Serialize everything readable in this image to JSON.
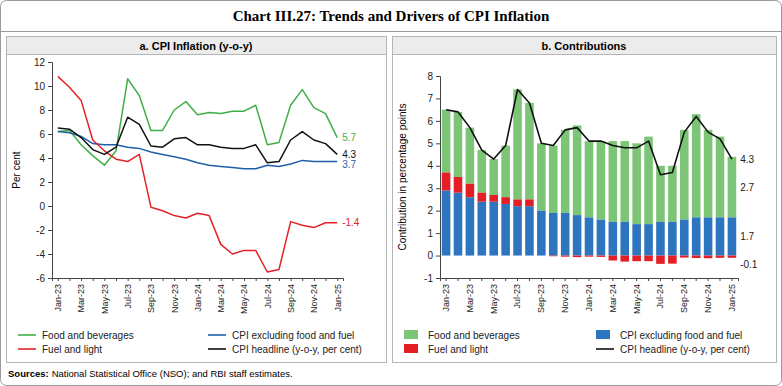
{
  "title": "Chart III.27: Trends and Drivers of CPI Inflation",
  "source_label": "Sources:",
  "source": "National Statistical Office (NSO); and RBI staff estimates.",
  "chart_data": [
    {
      "type": "line",
      "title": "a. CPI Inflation (y-o-y)",
      "y_label": "Per cent",
      "categories": [
        "Jan-23",
        null,
        "Mar-23",
        null,
        "May-23",
        null,
        "Jul-23",
        null,
        "Sep-23",
        null,
        "Nov-23",
        null,
        "Jan-24",
        null,
        "Mar-24",
        null,
        "May-24",
        null,
        "Jul-24",
        null,
        "Sep-24",
        null,
        "Nov-24",
        null,
        "Jan-25"
      ],
      "ylim": [
        -6,
        12
      ],
      "yticks": [
        -6,
        -4,
        -2,
        0,
        2,
        4,
        6,
        8,
        10,
        12
      ],
      "grid": false,
      "legend": "bottom",
      "data_labels": true,
      "series": [
        {
          "name": "Food and beverages",
          "color": "#3fae49",
          "values": [
            6.2,
            6.3,
            5.1,
            4.2,
            3.4,
            4.6,
            10.6,
            9.2,
            6.3,
            6.3,
            8.0,
            8.7,
            7.6,
            7.8,
            7.7,
            7.9,
            7.9,
            8.4,
            5.1,
            5.3,
            8.4,
            9.7,
            8.2,
            7.7,
            5.7
          ],
          "value_labels": [
            null,
            null,
            null,
            null,
            null,
            null,
            null,
            null,
            null,
            null,
            null,
            null,
            null,
            null,
            null,
            null,
            null,
            null,
            null,
            null,
            null,
            null,
            null,
            null,
            "5.7"
          ]
        },
        {
          "name": "CPI excluding food and fuel",
          "color": "#1f5fa8",
          "values": [
            6.2,
            6.1,
            5.8,
            5.2,
            5.1,
            5.1,
            4.9,
            4.8,
            4.5,
            4.3,
            4.1,
            3.9,
            3.6,
            3.4,
            3.3,
            3.2,
            3.1,
            3.1,
            3.4,
            3.3,
            3.5,
            3.8,
            3.7,
            3.7,
            3.7
          ],
          "value_labels": [
            null,
            null,
            null,
            null,
            null,
            null,
            null,
            null,
            null,
            null,
            null,
            null,
            null,
            null,
            null,
            null,
            null,
            null,
            null,
            null,
            null,
            null,
            null,
            null,
            "3.7"
          ]
        },
        {
          "name": "Fuel and light",
          "color": "#e32227",
          "values": [
            10.8,
            9.9,
            8.8,
            5.5,
            4.6,
            3.9,
            3.7,
            4.3,
            -0.1,
            -0.4,
            -0.8,
            -1.0,
            -0.6,
            -0.8,
            -3.2,
            -4.0,
            -3.7,
            -3.7,
            -5.5,
            -5.3,
            -1.3,
            -1.6,
            -1.8,
            -1.4,
            -1.4
          ],
          "value_labels": [
            null,
            null,
            null,
            null,
            null,
            null,
            null,
            null,
            null,
            null,
            null,
            null,
            null,
            null,
            null,
            null,
            null,
            null,
            null,
            null,
            null,
            null,
            null,
            null,
            "-1.4"
          ]
        },
        {
          "name": "CPI headline (y-o-y, per cent)",
          "color": "#111111",
          "values": [
            6.5,
            6.4,
            5.7,
            4.7,
            4.3,
            4.9,
            7.4,
            6.8,
            5.0,
            4.9,
            5.6,
            5.7,
            5.1,
            5.1,
            4.9,
            4.8,
            4.8,
            5.1,
            3.6,
            3.7,
            5.5,
            6.2,
            5.5,
            5.2,
            4.3
          ],
          "value_labels": [
            null,
            null,
            null,
            null,
            null,
            null,
            null,
            null,
            null,
            null,
            null,
            null,
            null,
            null,
            null,
            null,
            null,
            null,
            null,
            null,
            null,
            null,
            null,
            null,
            "4.3"
          ]
        }
      ]
    },
    {
      "type": "bar",
      "stacked": true,
      "title": "b. Contributions",
      "y_label": "Contribution in percentage points",
      "categories": [
        "Jan-23",
        null,
        "Mar-23",
        null,
        "May-23",
        null,
        "Jul-23",
        null,
        "Sep-23",
        null,
        "Nov-23",
        null,
        "Jan-24",
        null,
        "Mar-24",
        null,
        "May-24",
        null,
        "Jul-24",
        null,
        "Sep-24",
        null,
        "Nov-24",
        null,
        "Jan-25"
      ],
      "ylim": [
        -1,
        8
      ],
      "yticks": [
        -1,
        0,
        1,
        2,
        3,
        4,
        5,
        6,
        7,
        8
      ],
      "grid": false,
      "legend": "bottom",
      "data_labels": true,
      "series": [
        {
          "name": "Food and beverages",
          "color": "#7cc576",
          "values": [
            2.8,
            2.9,
            2.5,
            1.9,
            1.6,
            2.3,
            4.9,
            4.3,
            3.0,
            3.0,
            3.7,
            4.0,
            3.4,
            3.5,
            3.6,
            3.6,
            3.6,
            3.9,
            2.5,
            2.5,
            4.0,
            4.6,
            3.9,
            3.6,
            2.7
          ],
          "value_labels": [
            null,
            null,
            null,
            null,
            null,
            null,
            null,
            null,
            null,
            null,
            null,
            null,
            null,
            null,
            null,
            null,
            null,
            null,
            null,
            null,
            null,
            null,
            null,
            null,
            "2.7"
          ]
        },
        {
          "name": "CPI excluding food and fuel",
          "color": "#2e75c0",
          "values": [
            2.9,
            2.8,
            2.6,
            2.4,
            2.4,
            2.3,
            2.2,
            2.2,
            2.0,
            1.9,
            1.9,
            1.8,
            1.7,
            1.6,
            1.5,
            1.5,
            1.4,
            1.4,
            1.5,
            1.5,
            1.6,
            1.7,
            1.7,
            1.7,
            1.7
          ],
          "value_labels": [
            null,
            null,
            null,
            null,
            null,
            null,
            null,
            null,
            null,
            null,
            null,
            null,
            null,
            null,
            null,
            null,
            null,
            null,
            null,
            null,
            null,
            null,
            null,
            null,
            "1.7"
          ]
        },
        {
          "name": "Fuel and light",
          "color": "#e31e24",
          "values": [
            0.8,
            0.7,
            0.6,
            0.4,
            0.3,
            0.3,
            0.3,
            0.3,
            0.0,
            -0.03,
            -0.05,
            -0.07,
            -0.05,
            -0.06,
            -0.22,
            -0.27,
            -0.25,
            -0.25,
            -0.37,
            -0.36,
            -0.09,
            -0.11,
            -0.12,
            -0.1,
            -0.1
          ],
          "value_labels": [
            null,
            null,
            null,
            null,
            null,
            null,
            null,
            null,
            null,
            null,
            null,
            null,
            null,
            null,
            null,
            null,
            null,
            null,
            null,
            null,
            null,
            null,
            null,
            null,
            "-0.1"
          ]
        },
        {
          "name": "CPI headline (y-o-y, per cent)",
          "color": "#111111",
          "type": "line",
          "values": [
            6.5,
            6.4,
            5.7,
            4.7,
            4.3,
            4.9,
            7.4,
            6.8,
            5.0,
            4.9,
            5.6,
            5.7,
            5.1,
            5.1,
            4.9,
            4.8,
            4.8,
            5.1,
            3.6,
            3.7,
            5.5,
            6.2,
            5.5,
            5.2,
            4.3
          ],
          "value_labels": [
            null,
            null,
            null,
            null,
            null,
            null,
            null,
            null,
            null,
            null,
            null,
            null,
            null,
            null,
            null,
            null,
            null,
            null,
            null,
            null,
            null,
            null,
            null,
            null,
            "4.3"
          ]
        }
      ]
    }
  ]
}
